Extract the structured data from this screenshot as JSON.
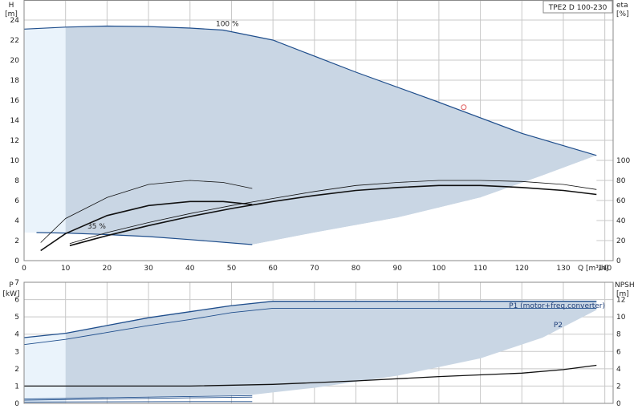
{
  "chart_data": [
    {
      "type": "line",
      "title": "TPE2 D 100-230",
      "xlabel": "Q [m³/h]",
      "ylabel_symbol": "H",
      "ylabel_unit": "[m]",
      "y2label_symbol": "eta",
      "y2label_unit": "[%]",
      "xlim": [
        0,
        142
      ],
      "ylim": [
        0,
        26
      ],
      "y2lim": [
        0,
        260
      ],
      "xticks": [
        "0",
        "10",
        "20",
        "30",
        "40",
        "50",
        "60",
        "70",
        "80",
        "90",
        "100",
        "110",
        "120",
        "130",
        "140"
      ],
      "yticks": [
        "0",
        "2",
        "4",
        "6",
        "8",
        "10",
        "12",
        "14",
        "16",
        "18",
        "20",
        "22",
        "24"
      ],
      "y2ticks": [
        "0",
        "20",
        "40",
        "60",
        "80",
        "100"
      ],
      "grid": true,
      "annotations": [
        {
          "text": "100 %",
          "x": 49,
          "y": 23.4
        },
        {
          "text": "35 %",
          "x": 17.5,
          "y": 3.2
        }
      ],
      "area_upper": {
        "x": [
          0,
          10,
          20,
          30,
          40,
          48,
          60,
          80,
          100,
          120,
          138
        ],
        "y": [
          23.1,
          23.3,
          23.4,
          23.35,
          23.2,
          23.0,
          22.0,
          18.8,
          15.8,
          12.7,
          10.5
        ]
      },
      "area_lower": {
        "x": [
          0,
          10,
          20,
          30,
          40,
          55,
          70,
          90,
          110,
          125,
          138
        ],
        "y": [
          2.8,
          2.75,
          2.6,
          2.4,
          2.1,
          1.6,
          2.8,
          4.3,
          6.3,
          8.5,
          10.5
        ]
      },
      "light_region": {
        "x": [
          0,
          10,
          10,
          0
        ],
        "y": [
          0,
          0,
          23.3,
          23.1
        ]
      },
      "series": [
        {
          "role": "max_curve",
          "x": [
            0,
            10,
            20,
            30,
            40,
            48,
            60,
            80,
            100,
            120,
            138
          ],
          "y": [
            23.1,
            23.3,
            23.4,
            23.35,
            23.2,
            23.0,
            22.0,
            18.8,
            15.8,
            12.7,
            10.5
          ]
        },
        {
          "role": "min_curve",
          "x": [
            3,
            10,
            20,
            30,
            40,
            55
          ],
          "y": [
            2.8,
            2.75,
            2.6,
            2.4,
            2.1,
            1.6
          ]
        },
        {
          "role": "eta_thin_short",
          "x": [
            4,
            10,
            20,
            30,
            40,
            48,
            55
          ],
          "y2": [
            18,
            42,
            63,
            76,
            80,
            78,
            72
          ]
        },
        {
          "role": "eta_thick_short",
          "x": [
            4,
            10,
            20,
            30,
            40,
            48,
            55
          ],
          "y2": [
            10,
            27,
            45,
            55,
            59,
            59,
            56
          ]
        },
        {
          "role": "eta_thin_long",
          "x": [
            11,
            20,
            30,
            40,
            50,
            60,
            70,
            80,
            90,
            100,
            110,
            120,
            130,
            138
          ],
          "y2": [
            17,
            28,
            38,
            47,
            55,
            62,
            69,
            75,
            78,
            80,
            80,
            79,
            76,
            71
          ]
        },
        {
          "role": "eta_thick_long",
          "x": [
            11,
            20,
            30,
            40,
            50,
            60,
            70,
            80,
            90,
            100,
            110,
            120,
            130,
            138
          ],
          "y2": [
            15,
            25,
            35,
            44,
            52,
            59,
            65,
            70,
            73,
            75,
            75,
            73,
            70,
            66
          ]
        }
      ],
      "duty_point": {
        "x": 106,
        "y": 15.3
      }
    },
    {
      "type": "line",
      "ylabel_symbol": "P",
      "ylabel_unit": "[kW]",
      "y2label_symbol": "NPSH",
      "y2label_unit": "[m]",
      "xlim": [
        0,
        142
      ],
      "ylim": [
        0,
        7
      ],
      "y2lim": [
        0,
        14
      ],
      "yticks": [
        "0",
        "1",
        "2",
        "3",
        "4",
        "5",
        "6",
        "7"
      ],
      "y2ticks": [
        "0",
        "2",
        "4",
        "6",
        "8",
        "10",
        "12"
      ],
      "grid": true,
      "area_upper": {
        "x": [
          0,
          10,
          20,
          30,
          40,
          50,
          60,
          80,
          100,
          120,
          138
        ],
        "y": [
          3.8,
          4.05,
          4.5,
          4.95,
          5.3,
          5.65,
          5.9,
          5.9,
          5.9,
          5.9,
          5.9
        ]
      },
      "area_lower": {
        "x": [
          0,
          20,
          40,
          55,
          70,
          90,
          110,
          125,
          138
        ],
        "y": [
          0.25,
          0.35,
          0.42,
          0.5,
          0.9,
          1.6,
          2.6,
          3.8,
          5.4
        ]
      },
      "light_region": {
        "x": [
          0,
          10,
          10,
          0
        ],
        "y": [
          0,
          0,
          4.05,
          3.8
        ]
      },
      "series": [
        {
          "name": "P1 (motor+freq.converter)",
          "x": [
            0,
            10,
            20,
            30,
            40,
            50,
            60,
            80,
            100,
            120,
            138
          ],
          "y": [
            3.8,
            4.05,
            4.5,
            4.95,
            5.3,
            5.65,
            5.9,
            5.9,
            5.9,
            5.9,
            5.9
          ]
        },
        {
          "name": "P2",
          "x": [
            0,
            10,
            20,
            30,
            40,
            50,
            60,
            80,
            100,
            120,
            138
          ],
          "y": [
            3.4,
            3.7,
            4.1,
            4.5,
            4.85,
            5.25,
            5.5,
            5.5,
            5.5,
            5.5,
            5.5
          ]
        },
        {
          "role": "npsh",
          "x": [
            0,
            20,
            40,
            60,
            80,
            100,
            120,
            130,
            138
          ],
          "y2": [
            2.0,
            2.0,
            2.0,
            2.2,
            2.6,
            3.1,
            3.5,
            3.9,
            4.4
          ]
        },
        {
          "role": "low_p1",
          "x": [
            0,
            20,
            40,
            55
          ],
          "y": [
            0.25,
            0.33,
            0.4,
            0.45
          ]
        },
        {
          "role": "low_p2",
          "x": [
            0,
            20,
            40,
            55
          ],
          "y": [
            0.18,
            0.25,
            0.32,
            0.36
          ]
        },
        {
          "role": "low_flat",
          "x": [
            0,
            20,
            40,
            55
          ],
          "y": [
            0.08,
            0.09,
            0.1,
            0.1
          ]
        }
      ]
    }
  ]
}
